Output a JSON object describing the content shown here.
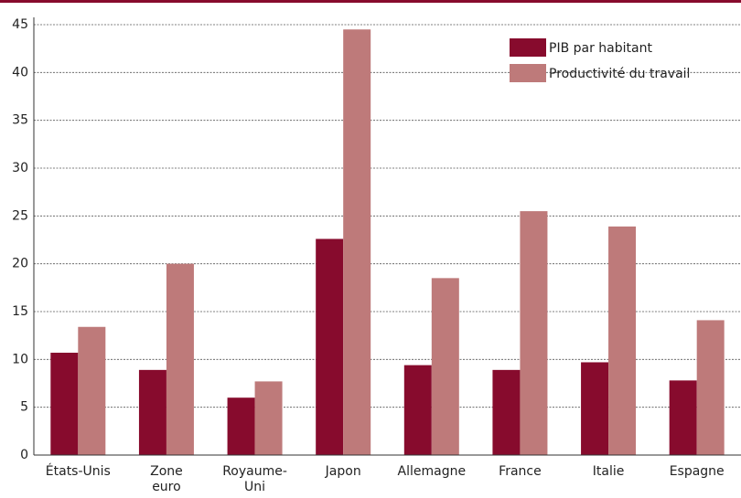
{
  "chart_data": {
    "type": "bar",
    "categories": [
      "États-Unis",
      "Zone\neuro",
      "Royaume-\nUni",
      "Japon",
      "Allemagne",
      "France",
      "Italie",
      "Espagne"
    ],
    "series": [
      {
        "name": "PIB par habitant",
        "color": "#870b2d",
        "values": [
          10.7,
          8.9,
          6,
          22.6,
          9.4,
          8.9,
          9.7,
          7.8
        ]
      },
      {
        "name": "Productivité du travail",
        "color": "#be7a7a",
        "values": [
          13.4,
          20,
          7.7,
          44.5,
          18.5,
          25.5,
          23.9,
          14.1
        ]
      }
    ],
    "ylim": [
      0,
      45
    ],
    "yticks": [
      0,
      5,
      10,
      15,
      20,
      25,
      30,
      35,
      40,
      45
    ],
    "grid": true,
    "legend": "top-right"
  }
}
